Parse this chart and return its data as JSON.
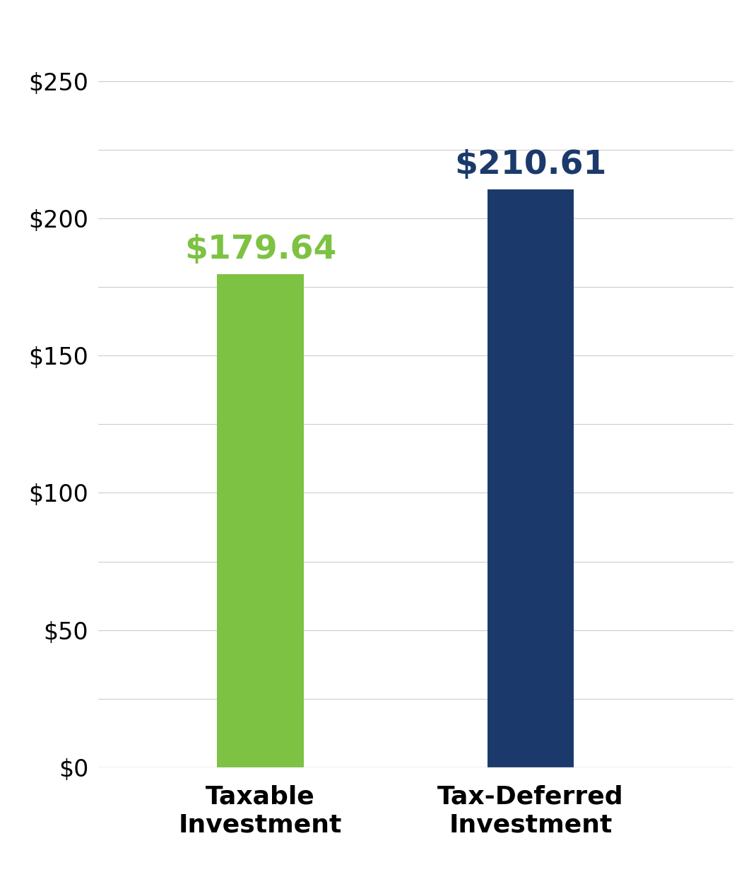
{
  "categories": [
    "Taxable\nInvestment",
    "Tax-Deferred\nInvestment"
  ],
  "values": [
    179.64,
    210.61
  ],
  "bar_colors": [
    "#7DC242",
    "#1B3A6B"
  ],
  "value_labels": [
    "$179.64",
    "$210.61"
  ],
  "value_label_colors": [
    "#7DC242",
    "#1B3A6B"
  ],
  "yticks_major": [
    0,
    50,
    100,
    150,
    200,
    250
  ],
  "yticks_minor": [
    25,
    75,
    125,
    175,
    225
  ],
  "ytick_labels": [
    "$0",
    "$50",
    "$100",
    "$150",
    "$200",
    "$250"
  ],
  "ylim": [
    0,
    270
  ],
  "grid_color": "#cccccc",
  "background_color": "#ffffff",
  "bar_width": 0.32,
  "x_positions": [
    1,
    2
  ],
  "xlim": [
    0.4,
    2.75
  ],
  "label_fontsize": 26,
  "value_fontsize": 34,
  "ytick_fontsize": 24,
  "grid_linewidth": 0.8
}
